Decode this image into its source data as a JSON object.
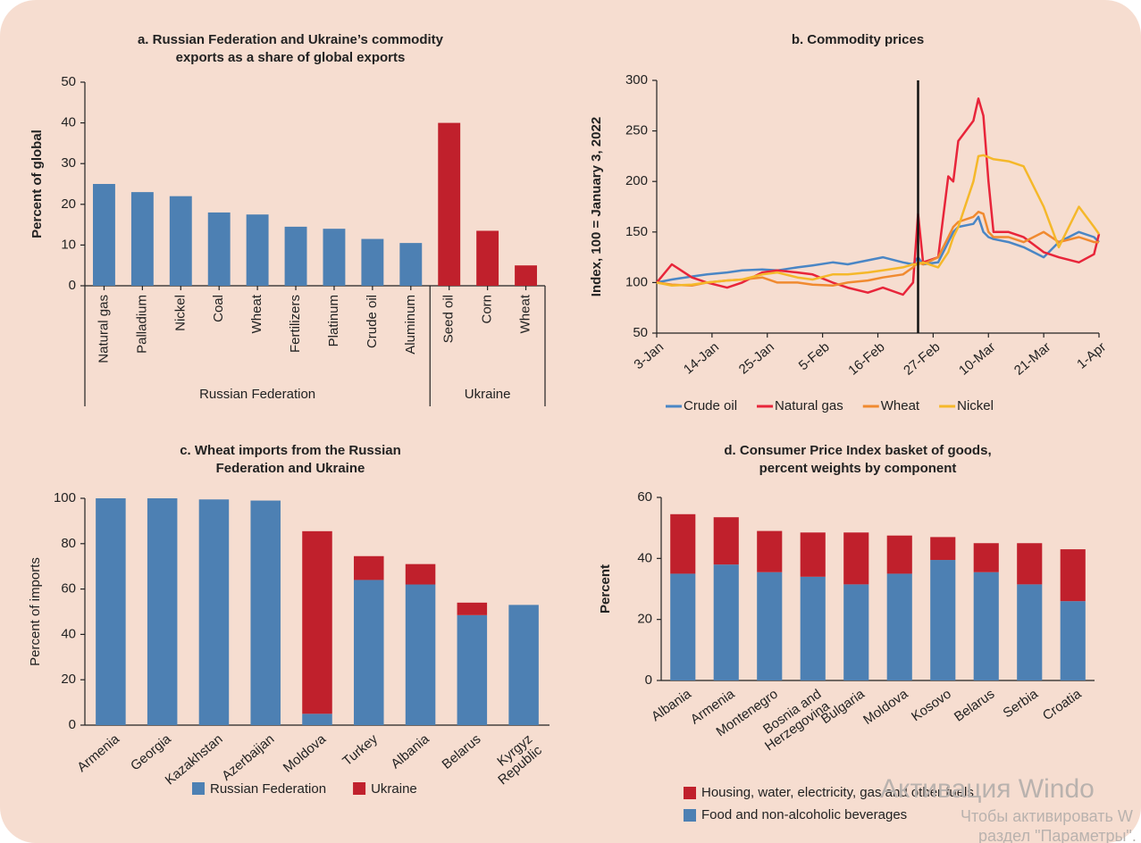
{
  "chart_data": [
    {
      "type": "bar",
      "title": [
        "a. Russian Federation and Ukraine’s commodity",
        "exports as a share of global exports"
      ],
      "ylabel": "Percent of global",
      "categories": [
        "Natural gas",
        "Palladium",
        "Nickel",
        "Coal",
        "Wheat",
        "Fertilizers",
        "Platinum",
        "Crude oil",
        "Aluminum",
        "Seed oil",
        "Corn",
        "Wheat"
      ],
      "series": [
        {
          "name": "Russian Federation",
          "color": "#4d80b3",
          "values": [
            25,
            23,
            22,
            18,
            17.5,
            14.5,
            14,
            11.5,
            10.5,
            null,
            null,
            null
          ]
        },
        {
          "name": "Ukraine",
          "color": "#c0202c",
          "values": [
            null,
            null,
            null,
            null,
            null,
            null,
            null,
            null,
            null,
            40,
            13.5,
            5
          ]
        }
      ],
      "ylim": [
        0,
        50
      ],
      "yticks": [
        0,
        10,
        20,
        30,
        40,
        50
      ]
    },
    {
      "type": "line",
      "title": [
        "b. Commodity prices"
      ],
      "ylabel": "Index, 100 = January 3, 2022",
      "x": [
        "3-Jan",
        "6-Jan",
        "10-Jan",
        "13-Jan",
        "17-Jan",
        "20-Jan",
        "24-Jan",
        "27-Jan",
        "31-Jan",
        "3-Feb",
        "7-Feb",
        "10-Feb",
        "14-Feb",
        "17-Feb",
        "21-Feb",
        "23-Feb",
        "24-Feb",
        "25-Feb",
        "28-Feb",
        "2-Mar",
        "3-Mar",
        "4-Mar",
        "7-Mar",
        "8-Mar",
        "9-Mar",
        "10-Mar",
        "11-Mar",
        "14-Mar",
        "17-Mar",
        "21-Mar",
        "24-Mar",
        "28-Mar",
        "31-Mar",
        "1-Apr"
      ],
      "series": [
        {
          "name": "Crude oil",
          "color": "#4a86c5",
          "values": [
            100,
            103,
            106,
            108,
            110,
            112,
            113,
            112,
            115,
            117,
            120,
            118,
            122,
            125,
            120,
            118,
            125,
            118,
            120,
            140,
            150,
            155,
            158,
            165,
            150,
            145,
            143,
            140,
            135,
            125,
            140,
            150,
            145,
            140
          ]
        },
        {
          "name": "Natural gas",
          "color": "#e8253a",
          "values": [
            100,
            118,
            105,
            100,
            95,
            100,
            110,
            112,
            110,
            108,
            100,
            95,
            90,
            95,
            88,
            100,
            168,
            120,
            125,
            205,
            200,
            240,
            260,
            282,
            265,
            200,
            150,
            150,
            145,
            130,
            125,
            120,
            128,
            148
          ]
        },
        {
          "name": "Wheat",
          "color": "#f08a30",
          "values": [
            100,
            98,
            97,
            100,
            102,
            103,
            105,
            100,
            100,
            98,
            97,
            100,
            102,
            105,
            108,
            115,
            120,
            118,
            125,
            145,
            155,
            160,
            165,
            170,
            168,
            150,
            145,
            145,
            140,
            150,
            140,
            145,
            140,
            140
          ]
        },
        {
          "name": "Nickel",
          "color": "#f5b82a",
          "values": [
            100,
            97,
            98,
            100,
            102,
            103,
            108,
            110,
            105,
            103,
            108,
            108,
            110,
            112,
            115,
            118,
            118,
            120,
            115,
            130,
            145,
            155,
            200,
            225,
            226,
            224,
            222,
            220,
            215,
            175,
            135,
            175,
            155,
            148
          ]
        }
      ],
      "xlim": [
        "3-Jan",
        "1-Apr"
      ],
      "xticks": [
        "3-Jan",
        "14-Jan",
        "25-Jan",
        "5-Feb",
        "16-Feb",
        "27-Feb",
        "10-Mar",
        "21-Mar",
        "1-Apr"
      ],
      "vline_x": "24-Feb",
      "ylim": [
        50,
        300
      ],
      "yticks": [
        50,
        100,
        150,
        200,
        250,
        300
      ]
    },
    {
      "type": "stacked_bar",
      "title": [
        "c. Wheat imports from the Russian",
        "Federation and Ukraine"
      ],
      "ylabel": "Percent of imports",
      "categories": [
        "Armenia",
        "Georgia",
        "Kazakhstan",
        "Azerbaijan",
        "Moldova",
        "Turkey",
        "Albania",
        "Belarus",
        "Kyrgyz Republic"
      ],
      "series": [
        {
          "name": "Russian Federation",
          "color": "#4d80b3",
          "values": [
            100,
            100,
            99.5,
            99,
            5,
            64,
            62,
            48.5,
            53
          ]
        },
        {
          "name": "Ukraine",
          "color": "#c0202c",
          "values": [
            0,
            0,
            0,
            0,
            80.5,
            10.5,
            9,
            5.5,
            0
          ]
        }
      ],
      "ylim": [
        0,
        100
      ],
      "yticks": [
        0,
        20,
        40,
        60,
        80,
        100
      ]
    },
    {
      "type": "stacked_bar",
      "title": [
        "d. Consumer Price Index basket of goods,",
        "percent weights by component"
      ],
      "ylabel": "Percent",
      "categories": [
        "Albania",
        "Armenia",
        "Montenegro",
        "Bosnia and Herzegovina",
        "Bulgaria",
        "Moldova",
        "Kosovo",
        "Belarus",
        "Serbia",
        "Croatia"
      ],
      "series": [
        {
          "name": "Food and non-alcoholic beverages",
          "color": "#4d80b3",
          "values": [
            35,
            38,
            35.5,
            34,
            31.5,
            35,
            39.5,
            35.5,
            31.5,
            26
          ]
        },
        {
          "name": "Housing, water, electricity, gas and other fuels",
          "color": "#c0202c",
          "values": [
            19.5,
            15.5,
            13.5,
            14.5,
            17,
            12.5,
            7.5,
            9.5,
            13.5,
            17
          ]
        }
      ],
      "ylim": [
        0,
        60
      ],
      "yticks": [
        0,
        20,
        40,
        60
      ]
    }
  ],
  "watermark": [
    "Активация Windo",
    "Чтобы активировать W",
    "раздел \"Параметры\"."
  ]
}
